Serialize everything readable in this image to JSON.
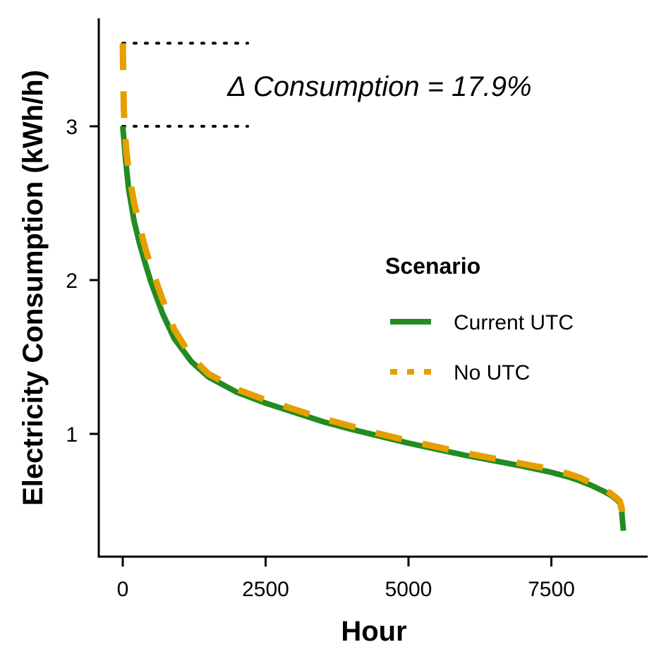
{
  "chart_data": {
    "type": "line",
    "title": "",
    "xlabel": "Hour",
    "ylabel": "Electricity Consumption (kWh/h)",
    "xlim": [
      -900,
      9100
    ],
    "ylim": [
      0.3,
      3.7
    ],
    "x_ticks": [
      0,
      2500,
      5000,
      7500
    ],
    "x_tick_labels": [
      "0",
      "2500",
      "5000",
      "7500"
    ],
    "y_ticks": [
      1,
      2,
      3
    ],
    "y_tick_labels": [
      "1",
      "2",
      "3"
    ],
    "grid": false,
    "legend": {
      "title": "Scenario",
      "placement": "right"
    },
    "series": [
      {
        "name": "Current UTC",
        "color": "#228B22",
        "dash": "solid",
        "x": [
          0,
          50,
          100,
          200,
          300,
          400,
          500,
          700,
          900,
          1200,
          1500,
          2000,
          2500,
          3000,
          3500,
          4000,
          4500,
          5000,
          5500,
          6000,
          6500,
          7000,
          7500,
          7800,
          8000,
          8200,
          8400,
          8550,
          8650,
          8700,
          8730,
          8760
        ],
        "y": [
          3.0,
          2.78,
          2.6,
          2.38,
          2.23,
          2.1,
          1.98,
          1.78,
          1.62,
          1.47,
          1.37,
          1.27,
          1.2,
          1.14,
          1.08,
          1.03,
          0.985,
          0.94,
          0.9,
          0.86,
          0.825,
          0.79,
          0.75,
          0.72,
          0.695,
          0.665,
          0.63,
          0.6,
          0.57,
          0.55,
          0.5,
          0.37
        ]
      },
      {
        "name": "No UTC",
        "color": "#E69F00",
        "dash": "dashed",
        "x": [
          0,
          10,
          20,
          40,
          60,
          100,
          150,
          200,
          300,
          400,
          500,
          700,
          900,
          1200,
          1500,
          2000,
          2500,
          3000,
          3500,
          4000,
          4500,
          5000,
          5500,
          6000,
          6500,
          7000,
          7500,
          7800,
          8000,
          8200,
          8400,
          8550,
          8650,
          8700,
          8730,
          8760
        ],
        "y": [
          3.54,
          3.3,
          3.1,
          2.95,
          2.85,
          2.72,
          2.6,
          2.5,
          2.34,
          2.2,
          2.08,
          1.87,
          1.68,
          1.5,
          1.39,
          1.29,
          1.22,
          1.16,
          1.1,
          1.05,
          1.0,
          0.955,
          0.915,
          0.875,
          0.84,
          0.805,
          0.77,
          0.74,
          0.715,
          0.68,
          0.645,
          0.61,
          0.58,
          0.56,
          0.52,
          0.4
        ]
      }
    ],
    "annotations": [
      {
        "text": "Δ Consumption = 17.9%",
        "style": "italic"
      },
      {
        "type": "reference-line",
        "style": "dotted",
        "y": 3.54,
        "x_range": [
          0,
          2000
        ]
      },
      {
        "type": "reference-line",
        "style": "dotted",
        "y": 3.0,
        "x_range": [
          0,
          2000
        ]
      }
    ]
  }
}
